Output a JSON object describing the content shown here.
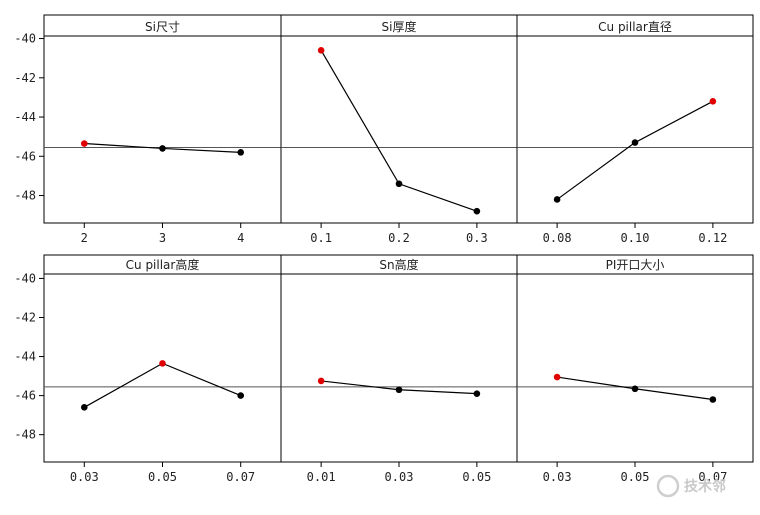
{
  "chart_data": {
    "type": "line",
    "title": "",
    "ylabel": "",
    "ylim": [
      -49.4,
      -38.8
    ],
    "y_ticks": [
      "-40",
      "-42",
      "-44",
      "-46",
      "-48"
    ],
    "reference_line": -45.55,
    "grid": false,
    "colors": {
      "line": "#000000",
      "point": "#000000",
      "highlight": "#e00000"
    },
    "rows": [
      {
        "panels": [
          {
            "title": "Si尺寸",
            "x_ticks": [
              "2",
              "3",
              "4"
            ],
            "values": [
              -45.35,
              -45.6,
              -45.8
            ],
            "highlight_index": 0
          },
          {
            "title": "Si厚度",
            "x_ticks": [
              "0.1",
              "0.2",
              "0.3"
            ],
            "values": [
              -40.6,
              -47.4,
              -48.8
            ],
            "highlight_index": 0
          },
          {
            "title": "Cu pillar直径",
            "x_ticks": [
              "0.08",
              "0.10",
              "0.12"
            ],
            "values": [
              -48.2,
              -45.3,
              -43.2
            ],
            "highlight_index": 2
          }
        ]
      },
      {
        "panels": [
          {
            "title": "Cu pillar高度",
            "x_ticks": [
              "0.03",
              "0.05",
              "0.07"
            ],
            "values": [
              -46.6,
              -44.35,
              -46.0
            ],
            "highlight_index": 1
          },
          {
            "title": "Sn高度",
            "x_ticks": [
              "0.01",
              "0.03",
              "0.05"
            ],
            "values": [
              -45.25,
              -45.7,
              -45.9
            ],
            "highlight_index": 0
          },
          {
            "title": "PI开口大小",
            "x_ticks": [
              "0.03",
              "0.05",
              "0.07"
            ],
            "values": [
              -45.05,
              -45.65,
              -46.2
            ],
            "highlight_index": 0
          }
        ]
      }
    ]
  },
  "watermark": {
    "text": "技术邻"
  }
}
